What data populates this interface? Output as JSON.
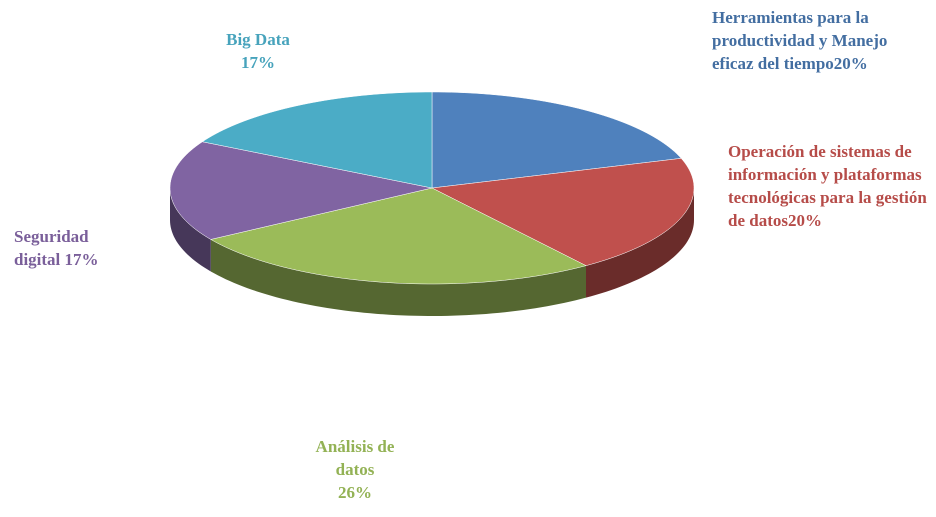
{
  "chart_data": {
    "type": "pie",
    "categories": [
      "Herramientas para la productividad y Manejo eficaz del tiempo",
      "Operación de sistemas de información y plataformas tecnológicas para la gestión de datos",
      "Análisis de datos",
      "Seguridad digital",
      "Big Data"
    ],
    "values": [
      20,
      20,
      26,
      17,
      17
    ],
    "value_labels": [
      "20%",
      "20%",
      "26%",
      "17%",
      "17%"
    ],
    "colors": [
      "#4f81bd",
      "#c0504d",
      "#9bbb59",
      "#8064a2",
      "#4bacc6"
    ]
  }
}
